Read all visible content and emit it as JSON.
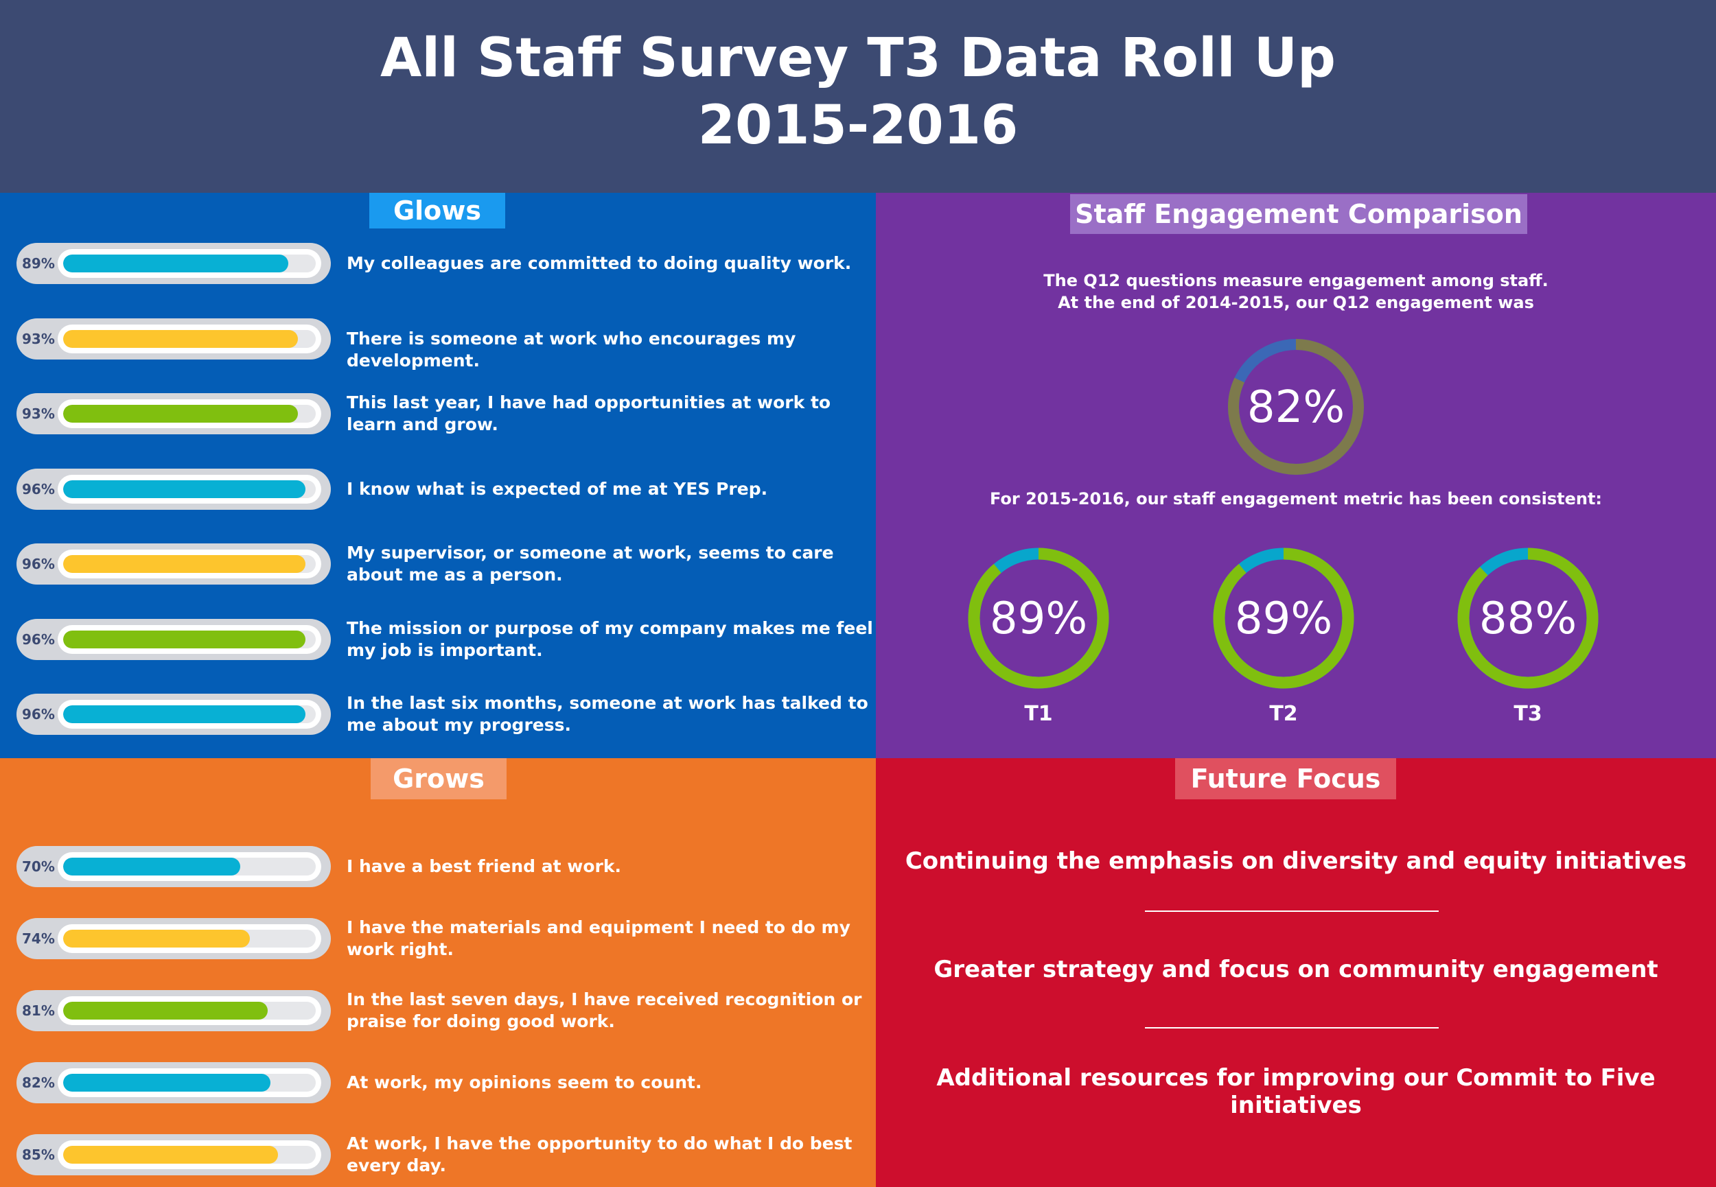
{
  "header": {
    "title_line1": "All Staff Survey T3 Data Roll Up",
    "title_line2": "2015-2016"
  },
  "glows": {
    "label": "Glows",
    "items": [
      {
        "pct": "89%",
        "value": 89,
        "color": "#08b0d4",
        "text": "My colleagues are committed to doing quality work."
      },
      {
        "pct": "93%",
        "value": 93,
        "color": "#fdc52d",
        "text": "There is someone at work who encourages my development."
      },
      {
        "pct": "93%",
        "value": 93,
        "color": "#80bf0f",
        "text": "This last year, I have had opportunities at work to learn and grow."
      },
      {
        "pct": "96%",
        "value": 96,
        "color": "#08b0d4",
        "text": "I know what is expected of me at YES Prep."
      },
      {
        "pct": "96%",
        "value": 96,
        "color": "#fdc52d",
        "text": "My supervisor, or someone at work, seems to care about me as a person."
      },
      {
        "pct": "96%",
        "value": 96,
        "color": "#80bf0f",
        "text": "The mission or purpose of my company makes me feel my job is important."
      },
      {
        "pct": "96%",
        "value": 96,
        "color": "#08b0d4",
        "text": "In the last six months, someone at work has talked to me about my progress."
      }
    ]
  },
  "grows": {
    "label": "Grows",
    "items": [
      {
        "pct": "70%",
        "value": 70,
        "color": "#08b0d4",
        "text": "I have a best friend at work."
      },
      {
        "pct": "74%",
        "value": 74,
        "color": "#fdc52d",
        "text": "I have the materials and equipment I need to do my work right."
      },
      {
        "pct": "81%",
        "value": 81,
        "color": "#80bf0f",
        "text": "In the last seven days, I have received recognition or praise for doing good work."
      },
      {
        "pct": "82%",
        "value": 82,
        "color": "#08b0d4",
        "text": "At work, my opinions seem to count."
      },
      {
        "pct": "85%",
        "value": 85,
        "color": "#fdc52d",
        "text": "At work, I have the opportunity to do what I do best every day."
      }
    ]
  },
  "engagement": {
    "label": "Staff Engagement Comparison",
    "intro_line1": "The Q12 questions measure engagement among staff.",
    "intro_line2": "At the end of 2014-2015, our Q12 engagement was",
    "baseline": {
      "value_label": "82%",
      "value": 82,
      "color": "#7d7a4c",
      "remainder_color": "#3b68b6"
    },
    "consistent_text": "For 2015-2016, our staff engagement metric has been consistent:",
    "terms": [
      {
        "label": "T1",
        "value_label": "89%",
        "value": 89,
        "color": "#80bf0f",
        "remainder_color": "#08a6cc"
      },
      {
        "label": "T2",
        "value_label": "89%",
        "value": 89,
        "color": "#80bf0f",
        "remainder_color": "#08a6cc"
      },
      {
        "label": "T3",
        "value_label": "88%",
        "value": 88,
        "color": "#80bf0f",
        "remainder_color": "#08a6cc"
      }
    ]
  },
  "future_focus": {
    "label": "Future Focus",
    "items": [
      "Continuing the emphasis on diversity and equity initiatives",
      "Greater strategy and focus on community engagement",
      "Additional resources for improving our Commit to Five initiatives"
    ]
  },
  "chart_data": [
    {
      "type": "bar",
      "title": "Glows",
      "categories": [
        "My colleagues are committed to doing quality work.",
        "There is someone at work who encourages my development.",
        "This last year, I have had opportunities at work to learn and grow.",
        "I know what is expected of me at YES Prep.",
        "My supervisor, or someone at work, seems to care about me as a person.",
        "The mission or purpose of my company makes me feel my job is important.",
        "In the last six months, someone at work has talked to me about my progress."
      ],
      "values": [
        89,
        93,
        93,
        96,
        96,
        96,
        96
      ],
      "ylim": [
        0,
        100
      ]
    },
    {
      "type": "bar",
      "title": "Grows",
      "categories": [
        "I have a best friend at work.",
        "I have the materials and equipment I need to do my work right.",
        "In the last seven days, I have received recognition or praise for doing good work.",
        "At work, my opinions seem to count.",
        "At work, I have the opportunity to do what I do best every day."
      ],
      "values": [
        70,
        74,
        81,
        82,
        85
      ],
      "ylim": [
        0,
        100
      ]
    },
    {
      "type": "pie",
      "title": "Staff Engagement Comparison",
      "categories": [
        "2014-2015",
        "T1",
        "T2",
        "T3"
      ],
      "values": [
        82,
        89,
        89,
        88
      ]
    }
  ]
}
